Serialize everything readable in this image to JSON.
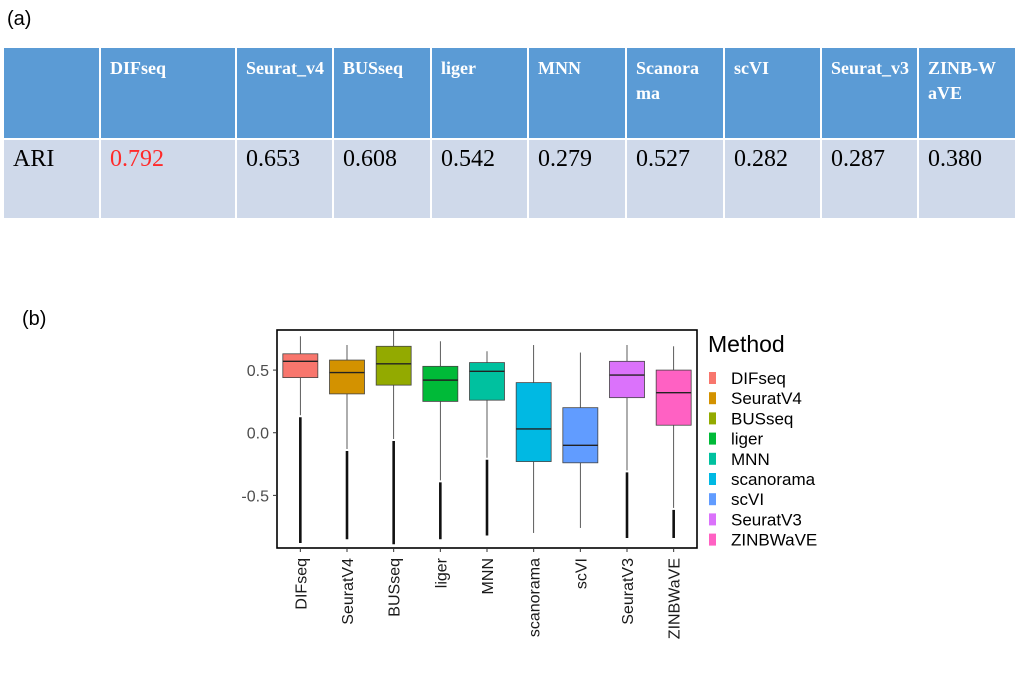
{
  "panels": {
    "a": "(a)",
    "b": "(b)"
  },
  "table": {
    "row_label": "ARI",
    "columns": [
      "DIFseq",
      "Seurat_v4",
      "BUSseq",
      "liger",
      "MNN",
      "Scanorama",
      "scVI",
      "Seurat_v3",
      "ZINB-WaVE"
    ],
    "values": [
      "0.792",
      "0.653",
      "0.608",
      "0.542",
      "0.279",
      "0.527",
      "0.282",
      "0.287",
      "0.380"
    ],
    "highlight_color": "#ff2a2a"
  },
  "chart_data": {
    "type": "boxplot",
    "legend_title": "Method",
    "legend_position": "right",
    "ylim": [
      -0.92,
      0.82
    ],
    "yticks": [
      0.5,
      0.0,
      -0.5
    ],
    "ytick_labels": [
      "0.5",
      "0.0",
      "-0.5"
    ],
    "categories": [
      "DIFseq",
      "SeuratV4",
      "BUSseq",
      "liger",
      "MNN",
      "scanorama",
      "scVI",
      "SeuratV3",
      "ZINBWaVE"
    ],
    "colors": [
      "#f8766d",
      "#d39200",
      "#93aa00",
      "#00ba38",
      "#00c19f",
      "#00b9e3",
      "#619cff",
      "#db72fb",
      "#ff61c3"
    ],
    "boxes": [
      {
        "name": "DIFseq",
        "whisker_low": 0.14,
        "q1": 0.44,
        "median": 0.57,
        "q3": 0.63,
        "whisker_high": 0.77,
        "outlier_low": -0.88
      },
      {
        "name": "SeuratV4",
        "whisker_low": -0.13,
        "q1": 0.31,
        "median": 0.48,
        "q3": 0.58,
        "whisker_high": 0.7,
        "outlier_low": -0.85
      },
      {
        "name": "BUSseq",
        "whisker_low": -0.05,
        "q1": 0.38,
        "median": 0.55,
        "q3": 0.69,
        "whisker_high": 0.82,
        "outlier_low": -0.89
      },
      {
        "name": "liger",
        "whisker_low": -0.38,
        "q1": 0.25,
        "median": 0.42,
        "q3": 0.53,
        "whisker_high": 0.73,
        "outlier_low": -0.85
      },
      {
        "name": "MNN",
        "whisker_low": -0.2,
        "q1": 0.26,
        "median": 0.49,
        "q3": 0.56,
        "whisker_high": 0.65,
        "outlier_low": -0.82
      },
      {
        "name": "scanorama",
        "whisker_low": -0.8,
        "q1": -0.23,
        "median": 0.03,
        "q3": 0.4,
        "whisker_high": 0.7,
        "outlier_low": null
      },
      {
        "name": "scVI",
        "whisker_low": -0.76,
        "q1": -0.24,
        "median": -0.1,
        "q3": 0.2,
        "whisker_high": 0.64,
        "outlier_low": null
      },
      {
        "name": "SeuratV3",
        "whisker_low": -0.3,
        "q1": 0.28,
        "median": 0.46,
        "q3": 0.57,
        "whisker_high": 0.7,
        "outlier_low": -0.84
      },
      {
        "name": "ZINBWaVE",
        "whisker_low": -0.6,
        "q1": 0.06,
        "median": 0.32,
        "q3": 0.5,
        "whisker_high": 0.69,
        "outlier_low": -0.84
      }
    ]
  }
}
